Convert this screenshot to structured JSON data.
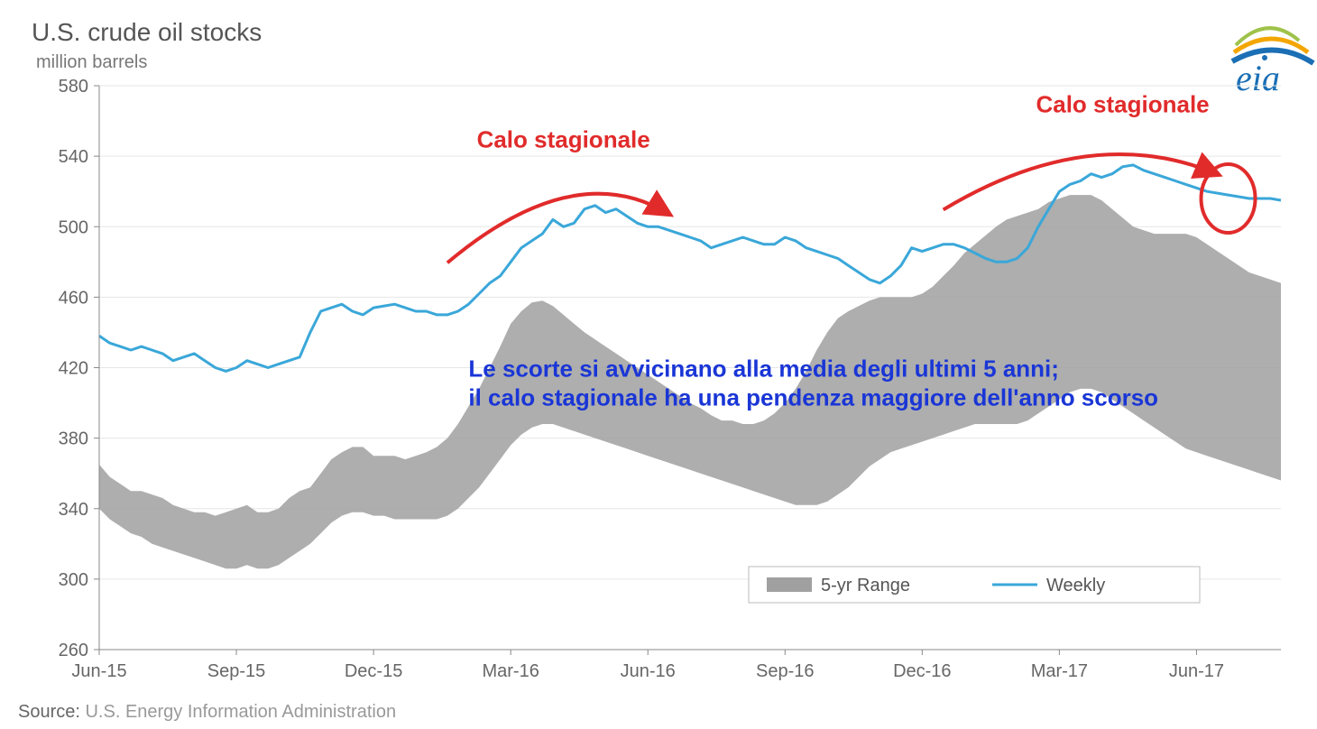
{
  "title": "U.S. crude oil stocks",
  "subtitle": "million barrels",
  "source_label": "Source:",
  "source_text": "U.S. Energy Information Administration",
  "logo_text": "eia",
  "legend": {
    "range": "5-yr Range",
    "weekly": "Weekly"
  },
  "annotations": {
    "calo1": "Calo stagionale",
    "calo2": "Calo stagionale",
    "blue_line1": "Le scorte si avvicinano alla media degli ultimi 5 anni;",
    "blue_line2": "il calo stagionale ha una pendenza maggiore dell'anno scorso"
  },
  "chart": {
    "type": "line+area",
    "background_color": "#ffffff",
    "plot_border_color": "#888888",
    "grid_color": "#e6e6e6",
    "ylim": [
      260,
      580
    ],
    "ytick_step": 40,
    "yticks": [
      260,
      300,
      340,
      380,
      420,
      460,
      500,
      540,
      580
    ],
    "xticks": [
      "Jun-15",
      "Sep-15",
      "Dec-15",
      "Mar-16",
      "Jun-16",
      "Sep-16",
      "Dec-16",
      "Mar-17",
      "Jun-17"
    ],
    "x_index_range": [
      0,
      112
    ],
    "xtick_indices": [
      0,
      13,
      26,
      39,
      52,
      65,
      78,
      91,
      104
    ],
    "series": {
      "weekly": {
        "color": "#3aa7d9",
        "line_width": 3,
        "y": [
          438,
          434,
          432,
          430,
          432,
          430,
          428,
          424,
          426,
          428,
          424,
          420,
          418,
          420,
          424,
          422,
          420,
          422,
          424,
          426,
          440,
          452,
          454,
          456,
          452,
          450,
          454,
          455,
          456,
          454,
          452,
          452,
          450,
          450,
          452,
          456,
          462,
          468,
          472,
          480,
          488,
          492,
          496,
          504,
          500,
          502,
          510,
          512,
          508,
          510,
          506,
          502,
          500,
          500,
          498,
          496,
          494,
          492,
          488,
          490,
          492,
          494,
          492,
          490,
          490,
          494,
          492,
          488,
          486,
          484,
          482,
          478,
          474,
          470,
          468,
          472,
          478,
          488,
          486,
          488,
          490,
          490,
          488,
          485,
          482,
          480,
          480,
          482,
          488,
          500,
          510,
          520,
          524,
          526,
          530,
          528,
          530,
          534,
          535,
          532,
          530,
          528,
          526,
          524,
          522,
          520,
          519,
          518,
          517,
          516,
          516,
          516,
          515
        ]
      },
      "range_upper": {
        "y": [
          365,
          358,
          354,
          350,
          350,
          348,
          346,
          342,
          340,
          338,
          338,
          336,
          338,
          340,
          342,
          338,
          338,
          340,
          346,
          350,
          352,
          360,
          368,
          372,
          375,
          375,
          370,
          370,
          370,
          368,
          370,
          372,
          375,
          380,
          388,
          398,
          408,
          420,
          432,
          445,
          452,
          457,
          458,
          455,
          450,
          445,
          440,
          436,
          432,
          428,
          424,
          420,
          416,
          412,
          408,
          404,
          400,
          397,
          393,
          390,
          390,
          388,
          388,
          390,
          394,
          400,
          408,
          418,
          430,
          440,
          448,
          452,
          455,
          458,
          460,
          460,
          460,
          460,
          462,
          466,
          472,
          478,
          485,
          490,
          495,
          500,
          504,
          506,
          508,
          510,
          514,
          516,
          518,
          518,
          518,
          515,
          510,
          505,
          500,
          498,
          496,
          496,
          496,
          496,
          494,
          490,
          486,
          482,
          478,
          474,
          472,
          470,
          468
        ]
      },
      "range_lower": {
        "y": [
          340,
          334,
          330,
          326,
          324,
          320,
          318,
          316,
          314,
          312,
          310,
          308,
          306,
          306,
          308,
          306,
          306,
          308,
          312,
          316,
          320,
          326,
          332,
          336,
          338,
          338,
          336,
          336,
          334,
          334,
          334,
          334,
          334,
          336,
          340,
          346,
          352,
          360,
          368,
          376,
          382,
          386,
          388,
          388,
          386,
          384,
          382,
          380,
          378,
          376,
          374,
          372,
          370,
          368,
          366,
          364,
          362,
          360,
          358,
          356,
          354,
          352,
          350,
          348,
          346,
          344,
          342,
          342,
          342,
          344,
          348,
          352,
          358,
          364,
          368,
          372,
          374,
          376,
          378,
          380,
          382,
          384,
          386,
          388,
          388,
          388,
          388,
          388,
          390,
          394,
          398,
          402,
          406,
          408,
          408,
          406,
          402,
          398,
          394,
          390,
          386,
          382,
          378,
          374,
          372,
          370,
          368,
          366,
          364,
          362,
          360,
          358,
          356
        ]
      },
      "range_fill": "#a0a0a0"
    },
    "annotations_style": {
      "red_color": "#e12b2b",
      "blue_color": "#1a36d6",
      "arrow_stroke_width": 4,
      "circle_stroke_width": 4
    },
    "title_fontsize": 28,
    "subtitle_fontsize": 20,
    "tick_fontsize": 20
  }
}
